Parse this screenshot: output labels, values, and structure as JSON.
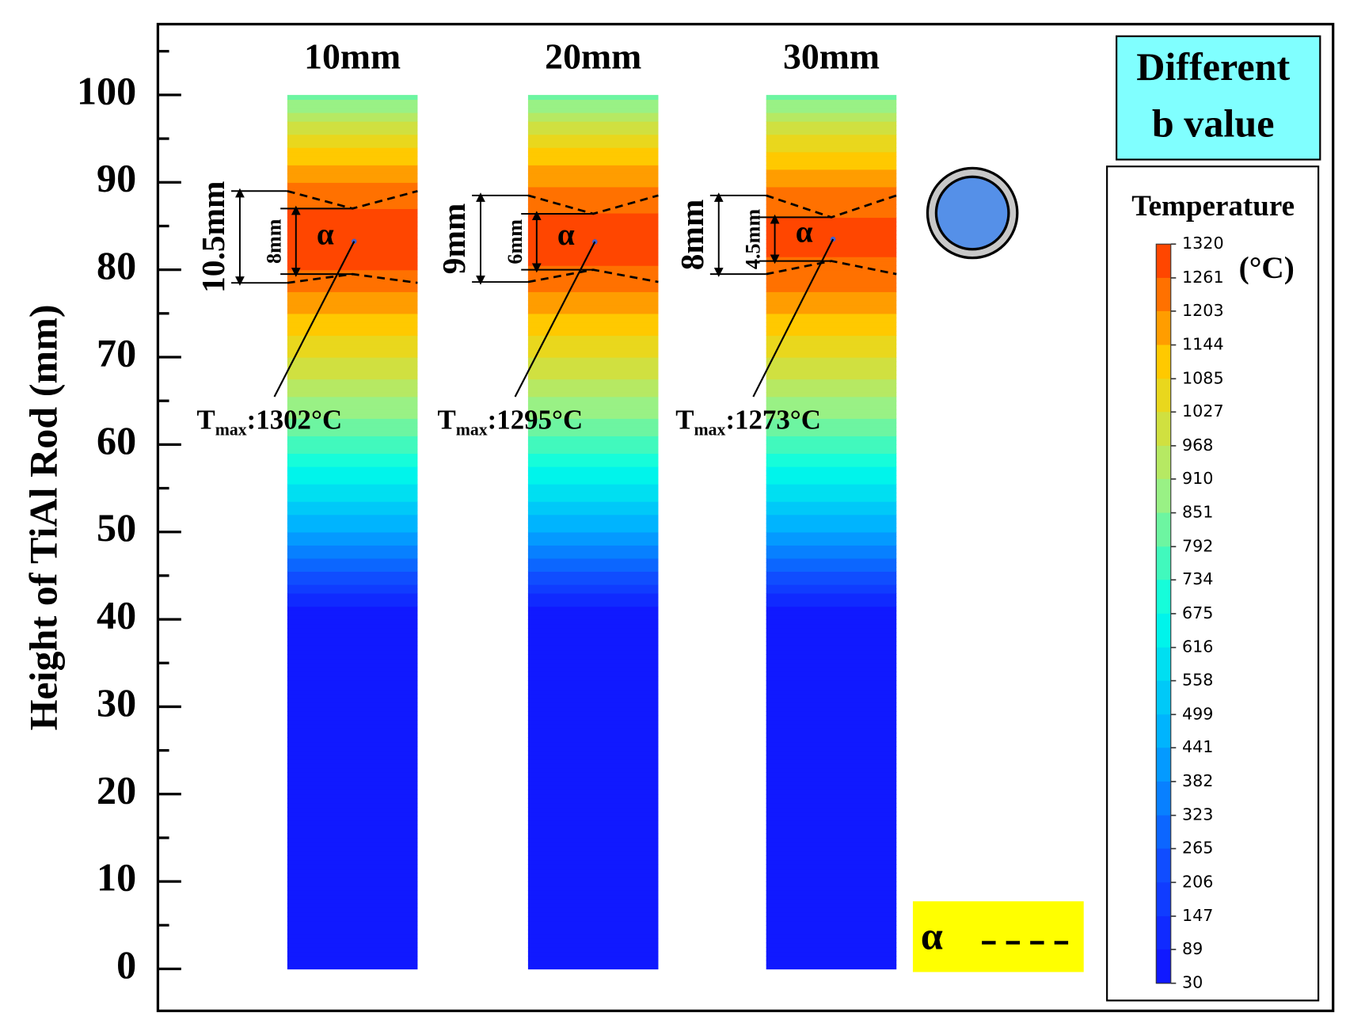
{
  "chart_data": {
    "type": "rod-contour",
    "title": [
      "Different",
      "b value"
    ],
    "ylabel": "Height of TiAl Rod (mm)",
    "ylim": [
      -4.8,
      108.1
    ],
    "yticks": [
      0,
      10,
      20,
      30,
      40,
      50,
      60,
      70,
      80,
      90,
      100
    ],
    "yminor": [
      5,
      15,
      25,
      35,
      45,
      55,
      65,
      75,
      85,
      95,
      105
    ],
    "colorbar": {
      "title": "Temperature",
      "unit": "(°C)",
      "clim": [
        30,
        1320
      ],
      "ticks": [
        1320,
        1261,
        1203,
        1144,
        1085,
        1027,
        968,
        910,
        851,
        792,
        734,
        675,
        616,
        558,
        499,
        441,
        382,
        323,
        265,
        206,
        147,
        89,
        30
      ],
      "colormap": [
        "#1010ff",
        "#1050ff",
        "#00b0ff",
        "#00ffe8",
        "#a0f080",
        "#ffd000",
        "#ff3000"
      ]
    },
    "legend": {
      "label": "α",
      "color": "#ffff00"
    },
    "rods": [
      {
        "name": "10mm",
        "phase": "α",
        "outer_label": "10.5mm",
        "inner_label": "8mm",
        "zone_outer": [
          78.5,
          89.0
        ],
        "zone_inner": [
          79.5,
          87.0
        ],
        "tmax_text": [
          "T",
          "max",
          ":1302°C"
        ],
        "height": [
          0,
          40,
          42,
          45,
          50,
          55,
          60,
          65,
          70,
          75,
          80,
          83,
          86,
          90,
          95,
          100
        ],
        "temperature": [
          30,
          30,
          100,
          250,
          440,
          600,
          760,
          900,
          1030,
          1150,
          1260,
          1302,
          1280,
          1200,
          1060,
          820
        ]
      },
      {
        "name": "20mm",
        "phase": "α",
        "outer_label": "9mm",
        "inner_label": "6mm",
        "zone_outer": [
          78.6,
          88.5
        ],
        "zone_inner": [
          80.0,
          86.4
        ],
        "tmax_text": [
          "T",
          "max",
          ":1295°C"
        ],
        "height": [
          0,
          40,
          42,
          45,
          50,
          55,
          60,
          65,
          70,
          75,
          80,
          83,
          86,
          90,
          95,
          100
        ],
        "temperature": [
          30,
          30,
          100,
          250,
          440,
          600,
          760,
          900,
          1030,
          1150,
          1255,
          1295,
          1275,
          1195,
          1055,
          820
        ]
      },
      {
        "name": "30mm",
        "phase": "α",
        "outer_label": "8mm",
        "inner_label": "4.5mm",
        "zone_outer": [
          79.5,
          88.5
        ],
        "zone_inner": [
          81.0,
          86.0
        ],
        "tmax_text": [
          "T",
          "max",
          ":1273°C"
        ],
        "height": [
          0,
          40,
          42,
          45,
          50,
          55,
          60,
          65,
          70,
          75,
          80,
          83,
          86,
          90,
          95,
          100
        ],
        "temperature": [
          30,
          30,
          100,
          250,
          440,
          600,
          760,
          900,
          1030,
          1150,
          1250,
          1273,
          1262,
          1190,
          1050,
          820
        ]
      }
    ]
  }
}
